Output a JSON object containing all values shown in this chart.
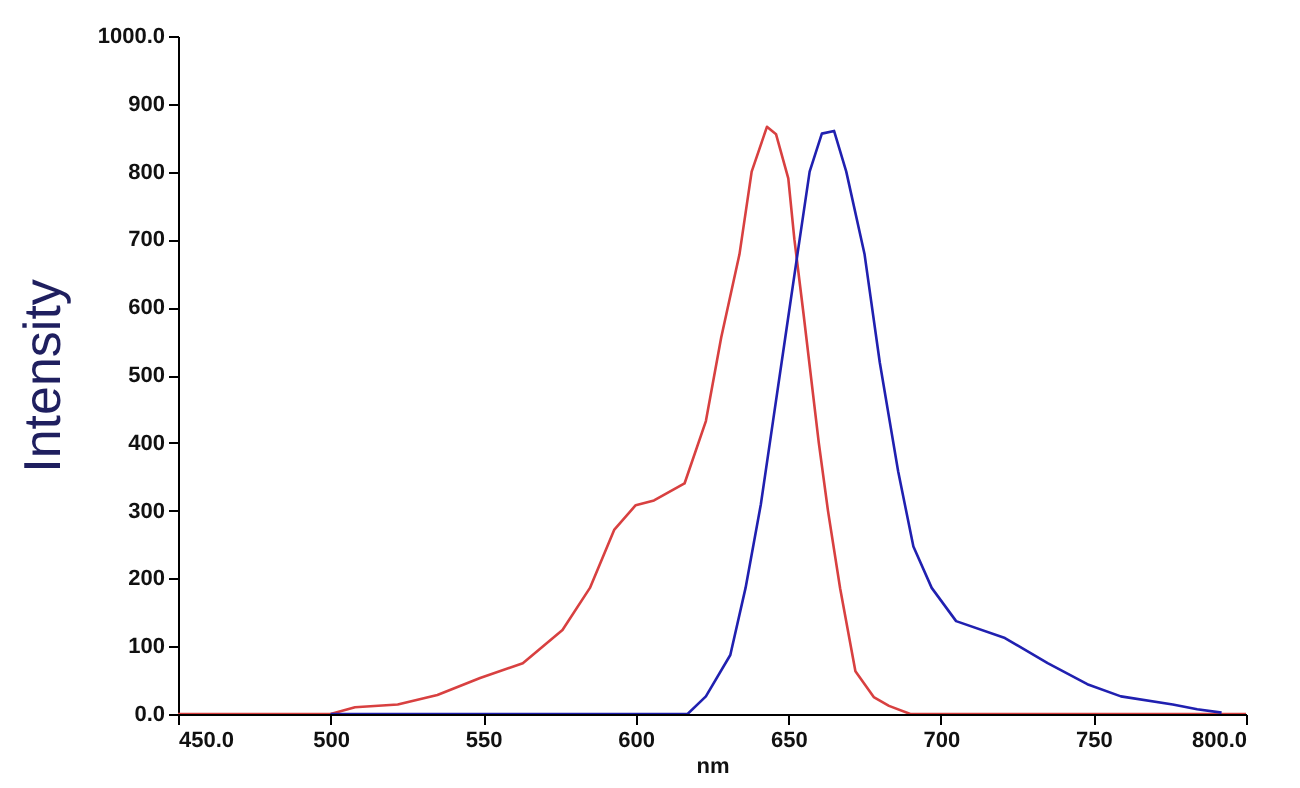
{
  "chart_data": {
    "type": "line",
    "xlabel": "nm",
    "ylabel": "Intensity",
    "xlim": [
      450,
      800
    ],
    "ylim": [
      0,
      1000
    ],
    "xticks": [
      {
        "value": 450,
        "label": "450.0"
      },
      500,
      550,
      600,
      650,
      700,
      750,
      {
        "value": 800,
        "label": "800.0"
      }
    ],
    "yticks": [
      {
        "value": 0,
        "label": "0.0"
      },
      100,
      200,
      300,
      400,
      500,
      600,
      700,
      800,
      900,
      {
        "value": 1000,
        "label": "1000.0"
      }
    ],
    "grid": false,
    "marker": "none",
    "line_style": "solid",
    "series": [
      {
        "color": "#d84040",
        "x": [
          450,
          500,
          508,
          522,
          535,
          549,
          563,
          576,
          585,
          593,
          600,
          606,
          616,
          623,
          628,
          634,
          638,
          643,
          646,
          650,
          652,
          655,
          660,
          663,
          667,
          672,
          678,
          683,
          690,
          800
        ],
        "values": [
          0,
          0,
          10,
          14,
          28,
          53,
          75,
          124,
          186,
          272,
          308,
          315,
          340,
          432,
          555,
          678,
          800,
          866,
          855,
          790,
          700,
          590,
          400,
          300,
          185,
          63,
          25,
          12,
          0,
          0
        ]
      },
      {
        "color": "#2020b0",
        "x": [
          500,
          617,
          623,
          631,
          636,
          641,
          645,
          649,
          653,
          657,
          661,
          665,
          669,
          675,
          680,
          686,
          691,
          697,
          705,
          721,
          735,
          748,
          759,
          776,
          784,
          792
        ],
        "values": [
          0,
          0,
          26,
          87,
          186,
          309,
          432,
          555,
          678,
          800,
          856,
          860,
          800,
          678,
          518,
          358,
          247,
          186,
          137,
          112,
          75,
          44,
          26,
          14,
          7,
          2
        ]
      }
    ]
  }
}
